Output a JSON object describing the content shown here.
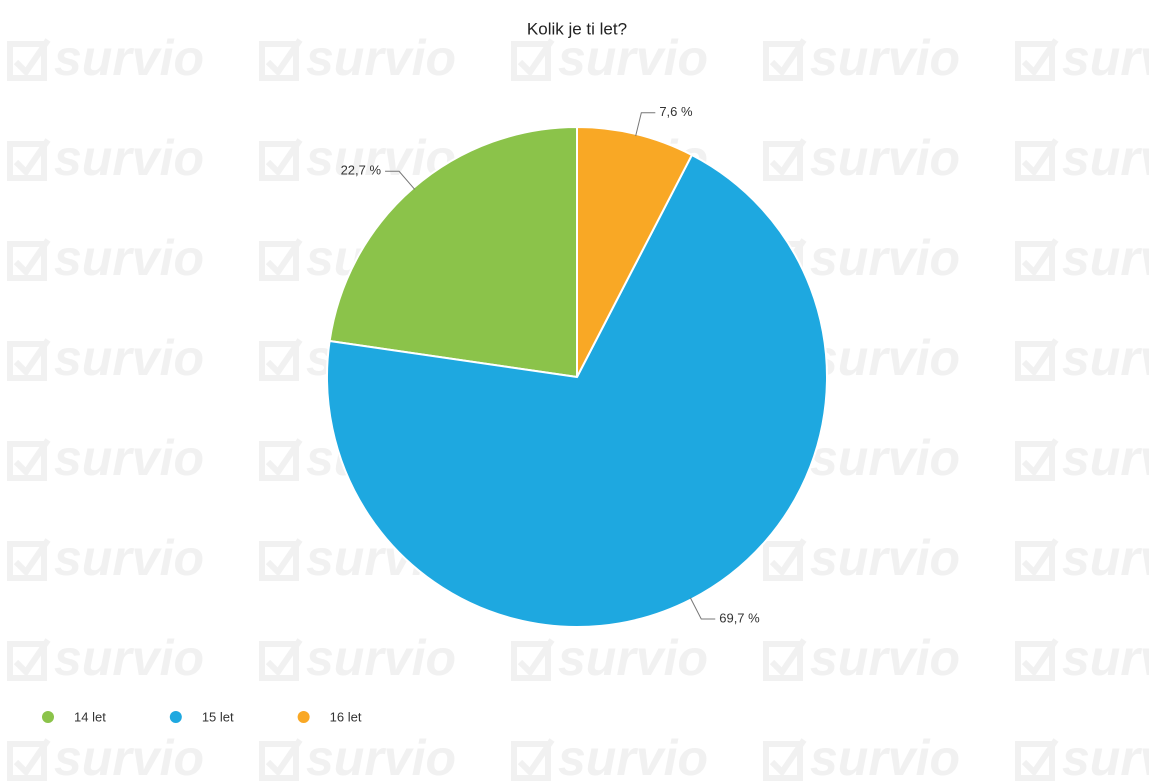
{
  "chart_data": {
    "type": "pie",
    "title": "Kolik je ti let?",
    "watermark": "survio",
    "categories": [
      "14 let",
      "15 let",
      "16 let"
    ],
    "values": [
      22.7,
      69.7,
      7.6
    ],
    "value_labels": [
      "22,7 %",
      "69,7 %",
      "7,6 %"
    ],
    "colors": [
      "#8bc34a",
      "#1ea8e0",
      "#f9a825"
    ],
    "legend": "bottom-left"
  }
}
